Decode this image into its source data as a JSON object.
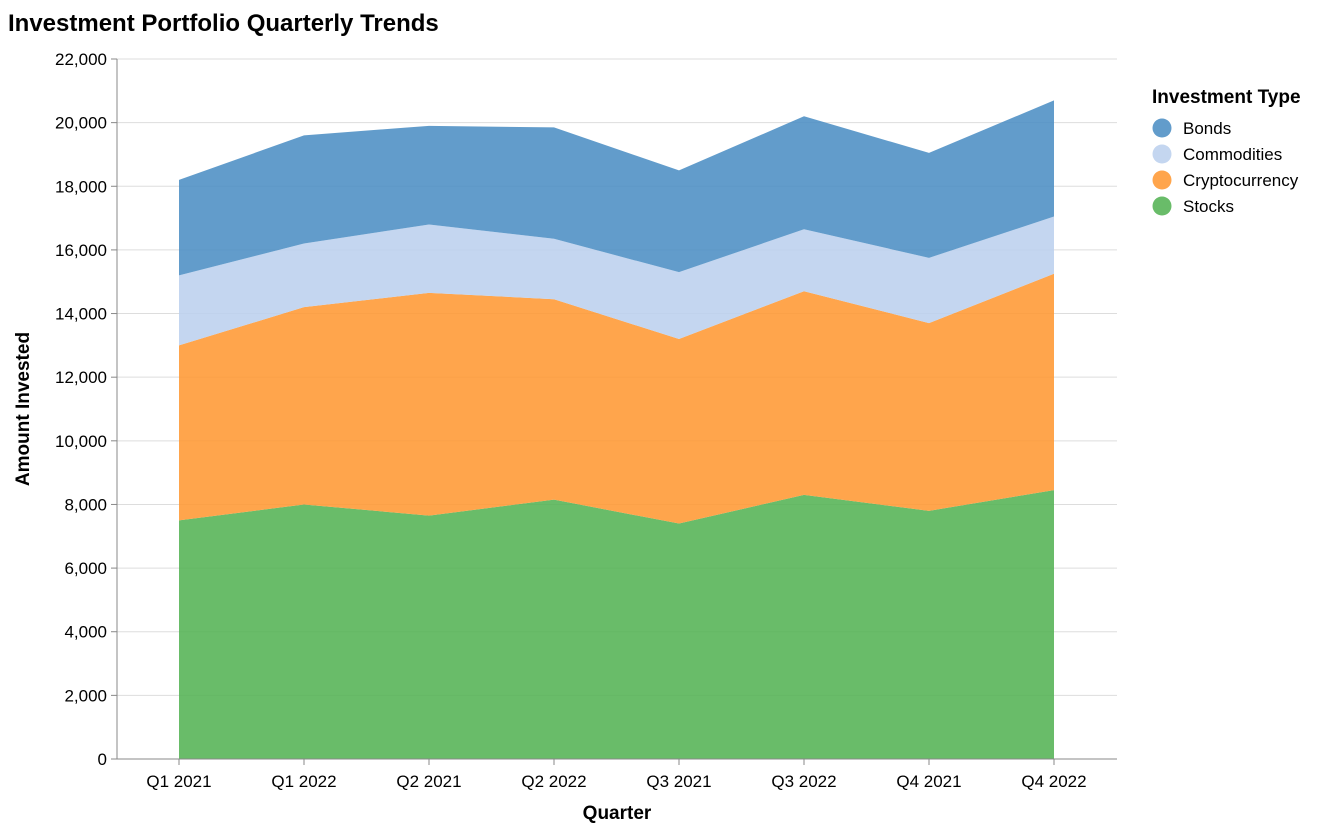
{
  "chart_data": {
    "type": "area",
    "stacked": true,
    "title": "Investment Portfolio Quarterly Trends",
    "xlabel": "Quarter",
    "ylabel": "Amount Invested",
    "ylim": [
      0,
      22000
    ],
    "yticks": [
      0,
      2000,
      4000,
      6000,
      8000,
      10000,
      12000,
      14000,
      16000,
      18000,
      20000,
      22000
    ],
    "ytick_labels": [
      "0",
      "2,000",
      "4,000",
      "6,000",
      "8,000",
      "10,000",
      "12,000",
      "14,000",
      "16,000",
      "18,000",
      "20,000",
      "22,000"
    ],
    "grid": true,
    "legend_title": "Investment Type",
    "legend_position": "top-right",
    "categories": [
      "Q1 2021",
      "Q1 2022",
      "Q2 2021",
      "Q2 2022",
      "Q3 2021",
      "Q3 2022",
      "Q4 2021",
      "Q4 2022"
    ],
    "series": [
      {
        "name": "Stocks",
        "color": "#54b354",
        "values": [
          7500,
          8000,
          7650,
          8150,
          7400,
          8300,
          7800,
          8450
        ]
      },
      {
        "name": "Cryptocurrency",
        "color": "#ff9933",
        "values": [
          5500,
          6200,
          7000,
          6300,
          5800,
          6400,
          5900,
          6800
        ]
      },
      {
        "name": "Commodities",
        "color": "#bcd0ee",
        "values": [
          2200,
          2000,
          2150,
          1900,
          2100,
          1950,
          2050,
          1800
        ]
      },
      {
        "name": "Bonds",
        "color": "#4c8ec4",
        "values": [
          3000,
          3400,
          3100,
          3500,
          3200,
          3550,
          3300,
          3650
        ]
      }
    ],
    "legend_order": [
      "Bonds",
      "Commodities",
      "Cryptocurrency",
      "Stocks"
    ]
  }
}
